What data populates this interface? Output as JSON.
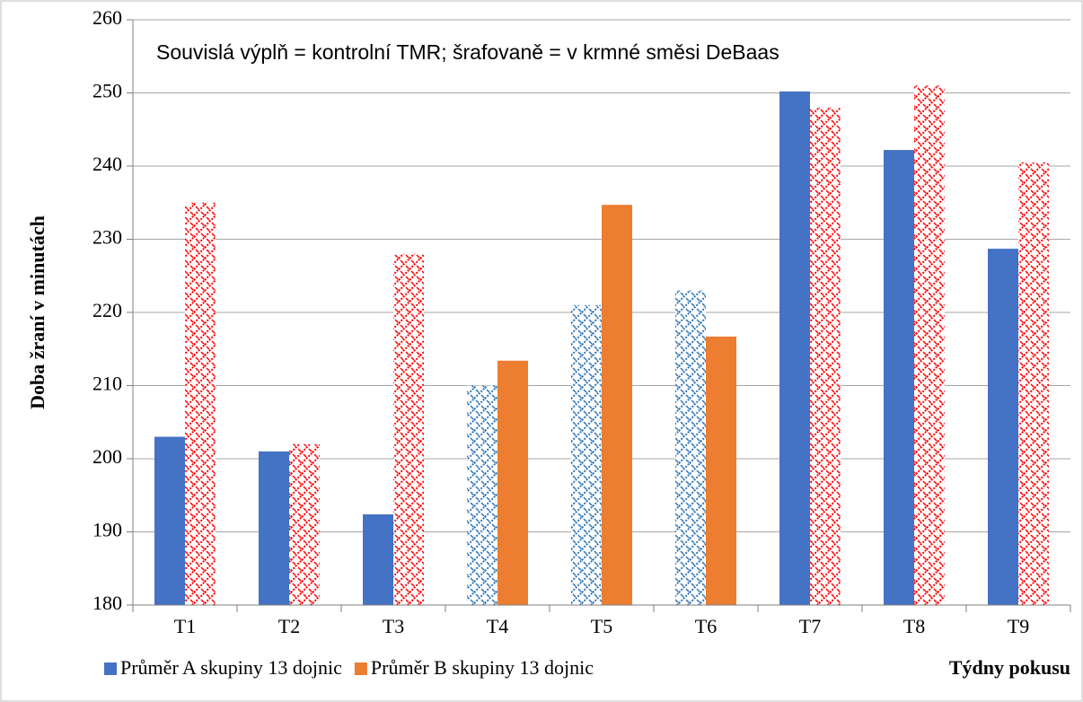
{
  "chart_data": {
    "type": "bar",
    "annotation": "Souvislá výplň = kontrolní TMR; šrafovaně = v krmné směsi DeBaas",
    "y_label": "Doba žraní v minutách",
    "x_label": "Týdny pokusu",
    "categories": [
      "T1",
      "T2",
      "T3",
      "T4",
      "T5",
      "T6",
      "T7",
      "T8",
      "T9"
    ],
    "series": [
      {
        "name": "Průměr A skupiny 13 dojnic",
        "color": "#4472c4",
        "hatch_color": "#2e75b6",
        "values": [
          203,
          201,
          192.4,
          210,
          221,
          223,
          250.2,
          242.2,
          228.7
        ],
        "hatched": [
          false,
          false,
          false,
          true,
          true,
          true,
          false,
          false,
          false
        ]
      },
      {
        "name": "Průměr B skupiny 13 dojnic",
        "color": "#ed7d31",
        "hatch_color": "#ff0000",
        "values": [
          235,
          202,
          228,
          213.4,
          234.7,
          216.7,
          248,
          251,
          240.5
        ],
        "hatched": [
          true,
          true,
          true,
          false,
          false,
          false,
          true,
          true,
          true
        ]
      }
    ],
    "ylim": [
      180,
      260
    ],
    "yticks": [
      180,
      190,
      200,
      210,
      220,
      230,
      240,
      250,
      260
    ],
    "grid": true
  }
}
